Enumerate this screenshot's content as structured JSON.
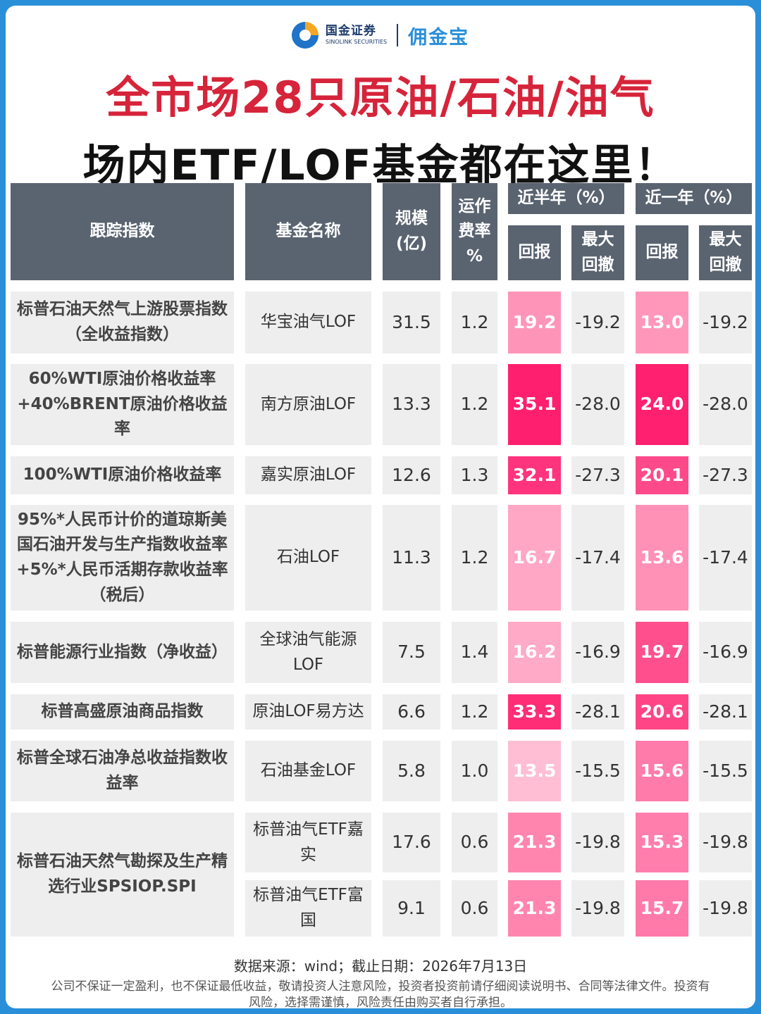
{
  "header": {
    "logo_cn": "国金证券",
    "logo_en": "SINOLINK SECURITIES",
    "brand": "佣金宝",
    "title_line1": "全市场28只原油/石油/油气",
    "title_line2": "场内ETF/LOF基金都在这里！"
  },
  "table": {
    "headers": {
      "index": "跟踪指数",
      "fund": "基金名称",
      "scale": "规模\n(亿)",
      "fee": "运作\n费率\n%",
      "half_year": "近半年（%）",
      "one_year": "近一年（%）",
      "return": "回报",
      "drawdown": "最大\n回撤"
    },
    "rows": [
      {
        "index": "标普石油天然气上游股票指数（全收益指数）",
        "fund": "华宝油气LOF",
        "scale": "31.5",
        "fee": "1.2",
        "hy_return": "19.2",
        "hy_dd": "-19.2",
        "y_return": "13.0",
        "y_dd": "-19.2"
      },
      {
        "index": "60%WTI原油价格收益率+40%BRENT原油价格收益率",
        "fund": "南方原油LOF",
        "scale": "13.3",
        "fee": "1.2",
        "hy_return": "35.1",
        "hy_dd": "-28.0",
        "y_return": "24.0",
        "y_dd": "-28.0"
      },
      {
        "index": "100%WTI原油价格收益率",
        "fund": "嘉实原油LOF",
        "scale": "12.6",
        "fee": "1.3",
        "hy_return": "32.1",
        "hy_dd": "-27.3",
        "y_return": "20.1",
        "y_dd": "-27.3"
      },
      {
        "index": "95%*人民币计价的道琼斯美国石油开发与生产指数收益率+5%*人民币活期存款收益率（税后）",
        "fund": "石油LOF",
        "scale": "11.3",
        "fee": "1.2",
        "hy_return": "16.7",
        "hy_dd": "-17.4",
        "y_return": "13.6",
        "y_dd": "-17.4"
      },
      {
        "index": "标普能源行业指数（净收益）",
        "fund": "全球油气能源LOF",
        "scale": "7.5",
        "fee": "1.4",
        "hy_return": "16.2",
        "hy_dd": "-16.9",
        "y_return": "19.7",
        "y_dd": "-16.9"
      },
      {
        "index": "标普高盛原油商品指数",
        "fund": "原油LOF易方达",
        "scale": "6.6",
        "fee": "1.2",
        "hy_return": "33.3",
        "hy_dd": "-28.1",
        "y_return": "20.6",
        "y_dd": "-28.1"
      },
      {
        "index": "标普全球石油净总收益指数收益率",
        "fund": "石油基金LOF",
        "scale": "5.8",
        "fee": "1.0",
        "hy_return": "13.5",
        "hy_dd": "-15.5",
        "y_return": "15.6",
        "y_dd": "-15.5"
      },
      {
        "index": "标普石油天然气勘探及生产精选行业SPSIOP.SPI",
        "fund": "标普油气ETF嘉实",
        "scale": "17.6",
        "fee": "0.6",
        "hy_return": "21.3",
        "hy_dd": "-19.8",
        "y_return": "15.3",
        "y_dd": "-19.8"
      },
      {
        "index": "",
        "fund": "标普油气ETF富国",
        "scale": "9.1",
        "fee": "0.6",
        "hy_return": "21.3",
        "hy_dd": "-19.8",
        "y_return": "15.7",
        "y_dd": "-19.8"
      }
    ]
  },
  "footer": {
    "source": "数据来源：wind；截止日期：2026年7月13日",
    "disclaimer": "公司不保证一定盈利，也不保证最低收益，敬请投资人注意风险，投资者投资前请仔细阅读说明书、合同等法律文件。投资有风险，选择需谨慎，风险责任由购买者自行承担。"
  },
  "colors": {
    "frame": "#2a8fd9",
    "title_red": "#d6243a",
    "header_gray": "#5a6470",
    "cell_gray": "#eeeeee",
    "heat_high": "#ff1f6e",
    "heat_low": "#ffc2d6"
  }
}
